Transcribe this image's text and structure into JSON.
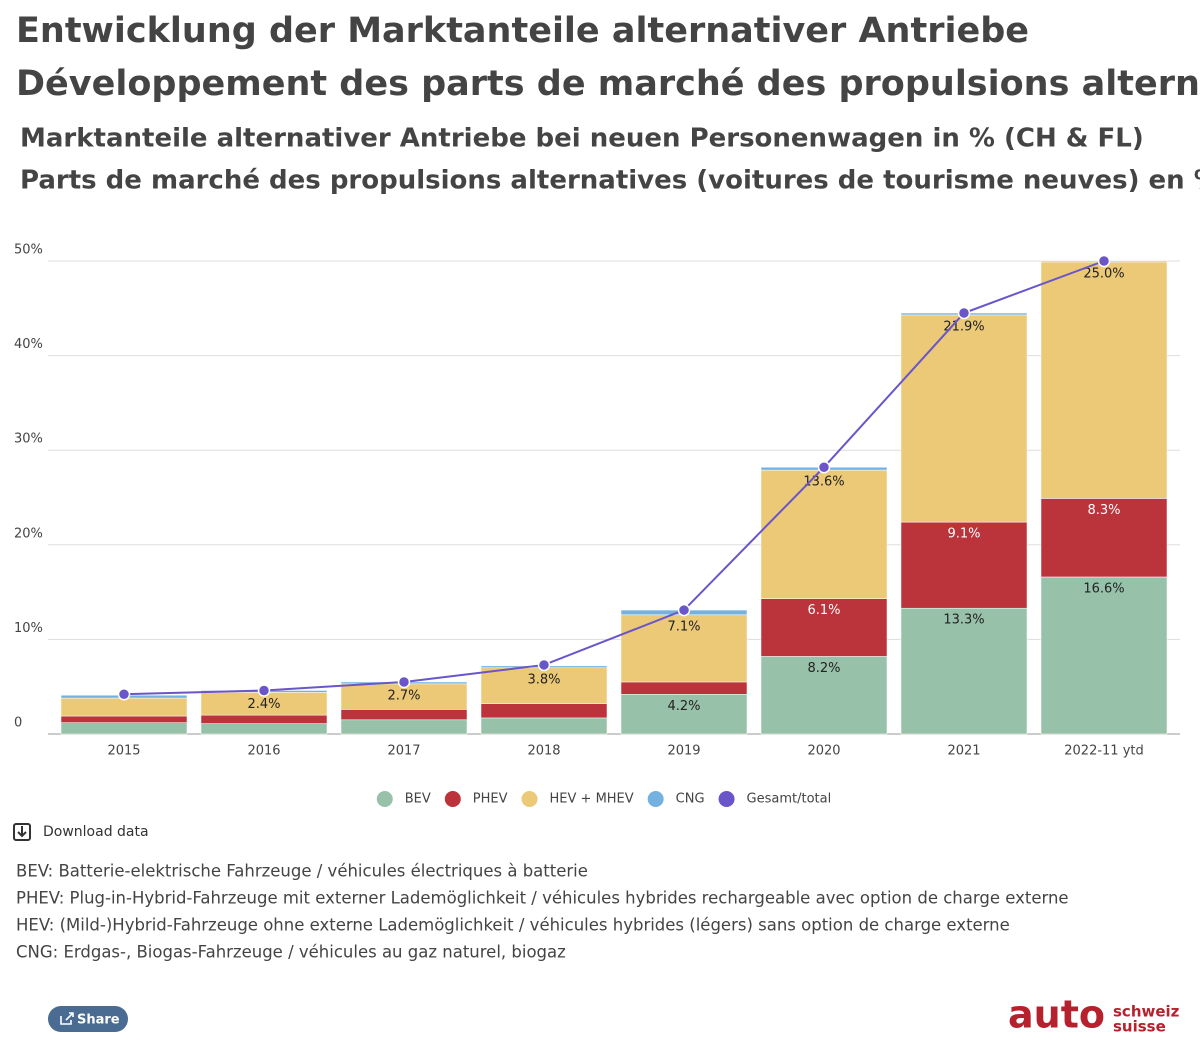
{
  "chart_data": {
    "type": "bar",
    "stacked": true,
    "title": [
      "Entwicklung der Marktanteile alternativer Antriebe",
      "Développement des parts de marché des propulsions alternatives"
    ],
    "subtitle": [
      "Marktanteile alternativer Antriebe bei neuen Personenwagen in % (CH & FL)",
      "Parts de marché des propulsions alternatives (voitures de tourisme neuves) en %"
    ],
    "categories": [
      "2015",
      "2016",
      "2017",
      "2018",
      "2019",
      "2020",
      "2021",
      "2022-11 ytd"
    ],
    "series": [
      {
        "name": "BEV",
        "color": "#98c1a9",
        "values": [
          1.2,
          1.1,
          1.5,
          1.7,
          4.2,
          8.2,
          13.3,
          16.6
        ],
        "value_labels": [
          null,
          null,
          null,
          null,
          "4.2%",
          "8.2%",
          "13.3%",
          "16.6%"
        ]
      },
      {
        "name": "PHEV",
        "color": "#bb333b",
        "values": [
          0.7,
          0.9,
          1.1,
          1.5,
          1.3,
          6.1,
          9.1,
          8.3
        ],
        "value_labels": [
          null,
          null,
          null,
          null,
          null,
          "6.1%",
          "9.1%",
          "8.3%"
        ]
      },
      {
        "name": "HEV + MHEV",
        "color": "#ebc977",
        "values": [
          1.9,
          2.4,
          2.7,
          3.8,
          7.1,
          13.6,
          21.9,
          25.0
        ],
        "value_labels": [
          null,
          "2.4%",
          "2.7%",
          "3.8%",
          "7.1%",
          "13.6%",
          "21.9%",
          "25.0%"
        ]
      },
      {
        "name": "CNG",
        "color": "#72b1e0",
        "values": [
          0.3,
          0.2,
          0.2,
          0.2,
          0.5,
          0.3,
          0.2,
          0.1
        ]
      },
      {
        "name": "Gesamt/total",
        "type": "line",
        "color": "#6a55c9",
        "values": [
          4.2,
          4.6,
          5.5,
          7.3,
          13.1,
          28.2,
          44.5,
          50.0
        ]
      }
    ],
    "ylim": [
      0,
      50
    ],
    "yticks": [
      0,
      {
        "value": 10,
        "label": "10%"
      },
      {
        "value": 20,
        "label": "20%"
      },
      {
        "value": 30,
        "label": "30%"
      },
      {
        "value": 40,
        "label": "40%"
      },
      {
        "value": 50,
        "label": "50%"
      }
    ],
    "grid": true,
    "legend": "bottom"
  },
  "download": "Download data",
  "notes": [
    "BEV: Batterie-elektrische Fahrzeuge / véhicules électriques à batterie",
    "PHEV: Plug-in-Hybrid-Fahrzeuge mit externer Lademöglichkeit / véhicules hybrides rechargeable avec option de charge externe",
    "HEV: (Mild-)Hybrid-Fahrzeuge ohne externe Lademöglichkeit / véhicules hybrides (légers) sans option de charge externe",
    "CNG: Erdgas-, Biogas-Fahrzeuge / véhicules au gaz naturel, biogaz"
  ],
  "share": "Share",
  "logo": {
    "main": "auto",
    "top": "schweiz",
    "bottom": "suisse"
  }
}
